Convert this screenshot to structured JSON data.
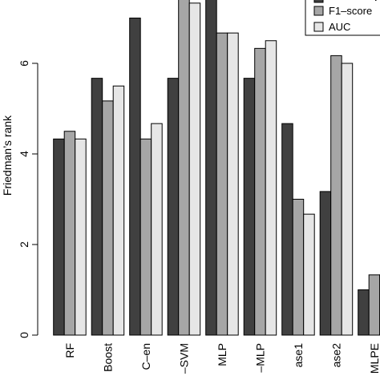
{
  "chart_data": {
    "type": "bar",
    "ylabel": "Friedman’s rank",
    "xlabel": "",
    "ylim": [
      0,
      8
    ],
    "yticks": [
      0,
      2,
      4,
      6
    ],
    "grid": false,
    "legend": {
      "position": "top-right"
    },
    "categories": [
      "RF",
      "Boost",
      "C–en",
      "–SVM",
      "MLP",
      "–MLP",
      "ase1",
      "ase2",
      "MLPE"
    ],
    "series": [
      {
        "name": "",
        "color": "#404040",
        "values": [
          4.33,
          5.67,
          7.0,
          5.67,
          7.67,
          5.67,
          4.67,
          3.17,
          1.0
        ]
      },
      {
        "name": "F1–score",
        "color": "#a6a6a6",
        "values": [
          4.5,
          5.17,
          4.33,
          7.67,
          6.67,
          6.33,
          3.0,
          6.17,
          1.33
        ]
      },
      {
        "name": "AUC",
        "color": "#e6e6e6",
        "values": [
          4.33,
          5.5,
          4.67,
          7.33,
          6.67,
          6.5,
          2.67,
          6.0,
          1.33
        ]
      }
    ]
  }
}
